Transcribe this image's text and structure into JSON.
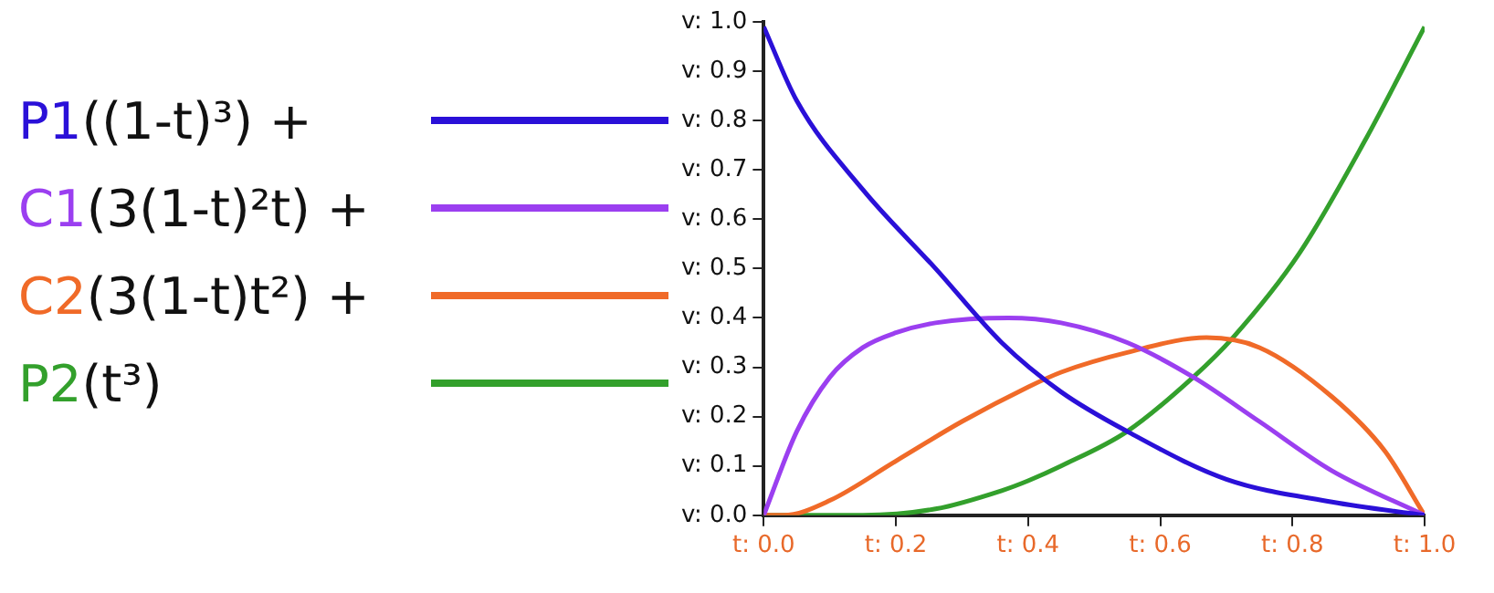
{
  "chart_data": {
    "type": "line",
    "legend": "left",
    "grid": false,
    "marker": "none",
    "line_style": "solid",
    "xlim": [
      0,
      1
    ],
    "ylim": [
      0,
      1
    ],
    "xticks": [
      {
        "value": 0,
        "label": "t: 0.0"
      },
      {
        "value": 0.2,
        "label": "t: 0.2"
      },
      {
        "value": 0.4,
        "label": "t: 0.4"
      },
      {
        "value": 0.6,
        "label": "t: 0.6"
      },
      {
        "value": 0.8,
        "label": "t: 0.8"
      },
      {
        "value": 1,
        "label": "t: 1.0"
      }
    ],
    "yticks": [
      {
        "value": 0,
        "label": "v: 0.0"
      },
      {
        "value": 0.1,
        "label": "v: 0.1"
      },
      {
        "value": 0.2,
        "label": "v: 0.2"
      },
      {
        "value": 0.3,
        "label": "v: 0.3"
      },
      {
        "value": 0.4,
        "label": "v: 0.4"
      },
      {
        "value": 0.5,
        "label": "v: 0.5"
      },
      {
        "value": 0.6,
        "label": "v: 0.6"
      },
      {
        "value": 0.7,
        "label": "v: 0.7"
      },
      {
        "value": 0.8,
        "label": "v: 0.8"
      },
      {
        "value": 0.9,
        "label": "v: 0.9"
      },
      {
        "value": 1,
        "label": "v: 1.0"
      }
    ],
    "series": [
      {
        "name": "P1((1-t)³) +",
        "color": "#2a10d8",
        "x": [
          0,
          0.05,
          0.15,
          0.26,
          0.36,
          0.45,
          0.55,
          0.7,
          0.86,
          1
        ],
        "values": [
          0.99,
          0.84,
          0.66,
          0.5,
          0.35,
          0.25,
          0.17,
          0.073,
          0.027,
          0
        ]
      },
      {
        "name": "C1(3(1-t)²t) +",
        "color": "#9b3ff0",
        "x": [
          0,
          0.05,
          0.1,
          0.15,
          0.2,
          0.26,
          0.37,
          0.45,
          0.55,
          0.65,
          0.75,
          0.86,
          1
        ],
        "values": [
          0,
          0.17,
          0.28,
          0.34,
          0.37,
          0.39,
          0.4,
          0.39,
          0.35,
          0.28,
          0.19,
          0.09,
          0
        ]
      },
      {
        "name": "C2(3(1-t)t²) +",
        "color": "#f06a28",
        "x": [
          0,
          0.03,
          0.1,
          0.2,
          0.3,
          0.4,
          0.45,
          0.55,
          0.67,
          0.75,
          0.86,
          0.94,
          1
        ],
        "values": [
          0,
          0,
          0.03,
          0.11,
          0.19,
          0.26,
          0.29,
          0.33,
          0.36,
          0.34,
          0.24,
          0.13,
          0
        ]
      },
      {
        "name": "P2(t³)",
        "color": "#33a02c",
        "x": [
          0,
          0.15,
          0.26,
          0.36,
          0.4,
          0.45,
          0.55,
          0.65,
          0.71,
          0.81,
          0.91,
          1
        ],
        "values": [
          0,
          0,
          0.013,
          0.05,
          0.07,
          0.1,
          0.17,
          0.28,
          0.36,
          0.53,
          0.76,
          0.99
        ]
      }
    ]
  }
}
